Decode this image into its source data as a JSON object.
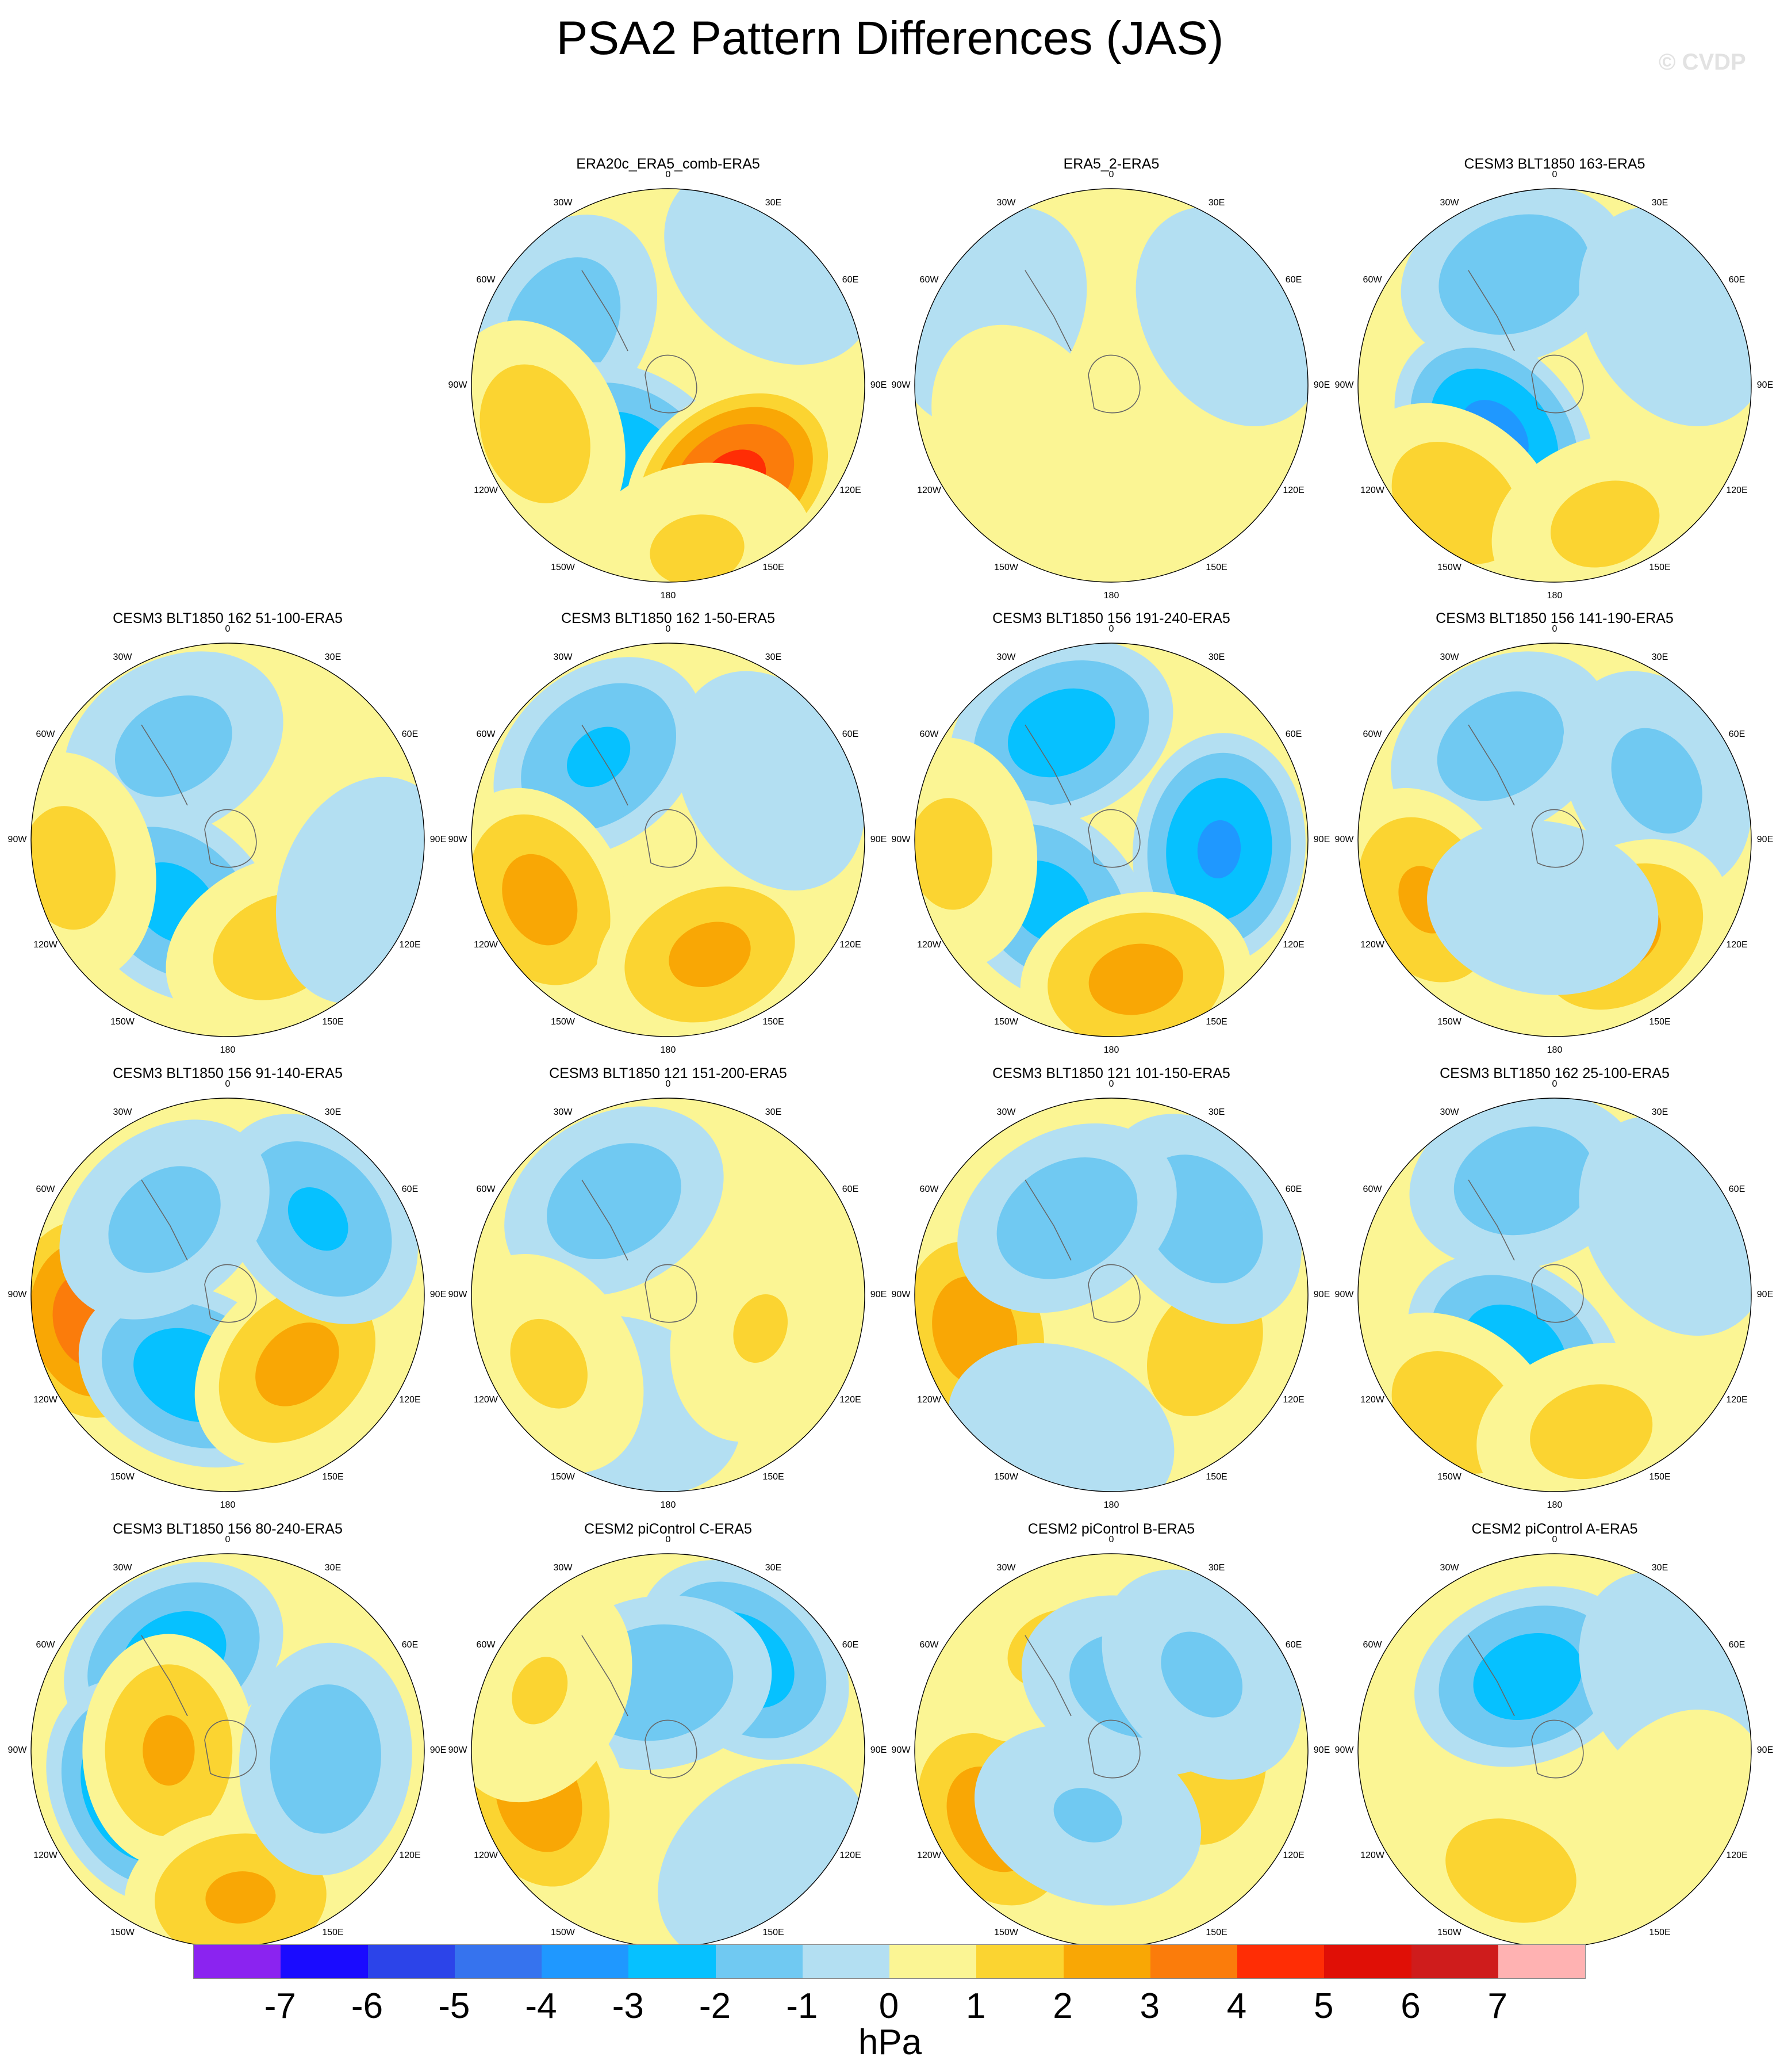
{
  "title": "PSA2 Pattern Differences (JAS)",
  "watermark": "© CVDP",
  "colorbar": {
    "unit": "hPa",
    "ticks": [
      "-7",
      "-6",
      "-5",
      "-4",
      "-3",
      "-2",
      "-1",
      "0",
      "1",
      "2",
      "3",
      "4",
      "5",
      "6",
      "7"
    ],
    "colors": [
      "#8b23f0",
      "#1a0bff",
      "#2c44e9",
      "#3673ee",
      "#1f98ff",
      "#06c1ff",
      "#70c9f2",
      "#b3dff2",
      "#fbf594",
      "#fbd431",
      "#f9a705",
      "#fb7c0b",
      "#ff2d05",
      "#e00f06",
      "#cf1c1c",
      "#ffb2b2"
    ]
  },
  "longitude_labels": [
    "0",
    "30E",
    "60E",
    "90E",
    "120E",
    "150E",
    "180",
    "150W",
    "120W",
    "90W",
    "60W",
    "30W"
  ],
  "chart_data": [
    {
      "type": "heatmap",
      "title": "ERA20c_ERA5_comb-ERA5",
      "features": [
        {
          "lon": 300,
          "r": 0.62,
          "v": -1.6
        },
        {
          "lon": 210,
          "r": 0.42,
          "v": -2.6
        },
        {
          "lon": 250,
          "r": 0.72,
          "v": 1.6
        },
        {
          "lon": 145,
          "r": 0.58,
          "v": 4.4
        },
        {
          "lon": 170,
          "r": 0.85,
          "v": 1.2
        },
        {
          "lon": 40,
          "r": 0.8,
          "v": -0.6
        }
      ]
    },
    {
      "type": "heatmap",
      "title": "ERA5_2-ERA5",
      "features": [
        {
          "lon": 300,
          "r": 0.7,
          "v": -0.7
        },
        {
          "lon": 60,
          "r": 0.7,
          "v": -0.7
        },
        {
          "lon": 180,
          "r": 0.6,
          "v": 0.6
        },
        {
          "lon": 240,
          "r": 0.5,
          "v": 0.5
        }
      ]
    },
    {
      "type": "heatmap",
      "title": "CESM3 BLT1850 163-ERA5",
      "features": [
        {
          "lon": 340,
          "r": 0.6,
          "v": -1.8
        },
        {
          "lon": 230,
          "r": 0.4,
          "v": -3.4
        },
        {
          "lon": 220,
          "r": 0.78,
          "v": 1.6
        },
        {
          "lon": 160,
          "r": 0.75,
          "v": 1.3
        },
        {
          "lon": 60,
          "r": 0.7,
          "v": -0.8
        }
      ]
    },
    {
      "type": "heatmap",
      "title": "CESM3 BLT1850 162 51-100-ERA5",
      "features": [
        {
          "lon": 330,
          "r": 0.55,
          "v": -1.4
        },
        {
          "lon": 220,
          "r": 0.42,
          "v": -2.4
        },
        {
          "lon": 260,
          "r": 0.82,
          "v": 1.4
        },
        {
          "lon": 155,
          "r": 0.6,
          "v": 1.5
        },
        {
          "lon": 110,
          "r": 0.75,
          "v": -0.7
        }
      ]
    },
    {
      "type": "heatmap",
      "title": "CESM3 BLT1850 162 1-50-ERA5",
      "features": [
        {
          "lon": 320,
          "r": 0.55,
          "v": -2.2
        },
        {
          "lon": 245,
          "r": 0.72,
          "v": 2.4
        },
        {
          "lon": 160,
          "r": 0.62,
          "v": 2.3
        },
        {
          "lon": 60,
          "r": 0.6,
          "v": -0.8
        }
      ]
    },
    {
      "type": "heatmap",
      "title": "CESM3 BLT1850 156 191-240-ERA5",
      "features": [
        {
          "lon": 335,
          "r": 0.6,
          "v": -2.6
        },
        {
          "lon": 95,
          "r": 0.55,
          "v": -3.2
        },
        {
          "lon": 225,
          "r": 0.45,
          "v": -2.4
        },
        {
          "lon": 170,
          "r": 0.72,
          "v": 2.4
        },
        {
          "lon": 265,
          "r": 0.82,
          "v": 1.3
        }
      ]
    },
    {
      "type": "heatmap",
      "title": "CESM3 BLT1850 156 141-190-ERA5",
      "features": [
        {
          "lon": 330,
          "r": 0.55,
          "v": -1.5
        },
        {
          "lon": 60,
          "r": 0.6,
          "v": -1.3
        },
        {
          "lon": 245,
          "r": 0.72,
          "v": 2.2
        },
        {
          "lon": 145,
          "r": 0.6,
          "v": 2.3
        },
        {
          "lon": 190,
          "r": 0.35,
          "v": -0.8
        }
      ]
    },
    {
      "type": "heatmap",
      "title": "CESM3 BLT1850 156 91-140-ERA5",
      "features": [
        {
          "lon": 260,
          "r": 0.72,
          "v": 3.6
        },
        {
          "lon": 205,
          "r": 0.45,
          "v": -2.7
        },
        {
          "lon": 135,
          "r": 0.5,
          "v": 2.4
        },
        {
          "lon": 50,
          "r": 0.6,
          "v": -2.2
        },
        {
          "lon": 320,
          "r": 0.5,
          "v": -1.4
        }
      ]
    },
    {
      "type": "heatmap",
      "title": "CESM3 BLT1850 121 151-200-ERA5",
      "features": [
        {
          "lon": 330,
          "r": 0.55,
          "v": -1.6
        },
        {
          "lon": 200,
          "r": 0.6,
          "v": -0.8
        },
        {
          "lon": 240,
          "r": 0.7,
          "v": 1.2
        },
        {
          "lon": 110,
          "r": 0.5,
          "v": 1.1
        }
      ]
    },
    {
      "type": "heatmap",
      "title": "CESM3 BLT1850 121 101-150-ERA5",
      "features": [
        {
          "lon": 255,
          "r": 0.72,
          "v": 2.6
        },
        {
          "lon": 120,
          "r": 0.55,
          "v": 1.6
        },
        {
          "lon": 50,
          "r": 0.6,
          "v": -1.6
        },
        {
          "lon": 330,
          "r": 0.45,
          "v": -1.7
        },
        {
          "lon": 200,
          "r": 0.75,
          "v": -0.8
        }
      ]
    },
    {
      "type": "heatmap",
      "title": "CESM3 BLT1850 162 25-100-ERA5",
      "features": [
        {
          "lon": 345,
          "r": 0.6,
          "v": -1.6
        },
        {
          "lon": 215,
          "r": 0.35,
          "v": -2.6
        },
        {
          "lon": 220,
          "r": 0.78,
          "v": 1.6
        },
        {
          "lon": 165,
          "r": 0.72,
          "v": 1.4
        },
        {
          "lon": 60,
          "r": 0.7,
          "v": -0.8
        }
      ]
    },
    {
      "type": "heatmap",
      "title": "CESM3 BLT1850 156 80-240-ERA5",
      "features": [
        {
          "lon": 330,
          "r": 0.55,
          "v": -2.6
        },
        {
          "lon": 245,
          "r": 0.5,
          "v": -3.3
        },
        {
          "lon": 270,
          "r": 0.3,
          "v": 2.2
        },
        {
          "lon": 175,
          "r": 0.75,
          "v": 2.2
        },
        {
          "lon": 95,
          "r": 0.5,
          "v": -1.7
        }
      ]
    },
    {
      "type": "heatmap",
      "title": "CESM2 piControl C-ERA5",
      "features": [
        {
          "lon": 40,
          "r": 0.6,
          "v": -2.6
        },
        {
          "lon": 350,
          "r": 0.35,
          "v": -1.8
        },
        {
          "lon": 250,
          "r": 0.7,
          "v": 2.6
        },
        {
          "lon": 295,
          "r": 0.72,
          "v": 1.1
        },
        {
          "lon": 140,
          "r": 0.75,
          "v": -0.8
        }
      ]
    },
    {
      "type": "heatmap",
      "title": "CESM2 piControl B-ERA5",
      "features": [
        {
          "lon": 240,
          "r": 0.7,
          "v": 2.6
        },
        {
          "lon": 100,
          "r": 0.5,
          "v": 1.8
        },
        {
          "lon": 330,
          "r": 0.6,
          "v": 1.2
        },
        {
          "lon": 20,
          "r": 0.35,
          "v": -1.5
        },
        {
          "lon": 50,
          "r": 0.6,
          "v": -1.2
        },
        {
          "lon": 200,
          "r": 0.35,
          "v": -1.1
        }
      ]
    },
    {
      "type": "heatmap",
      "title": "CESM2 piControl A-ERA5",
      "features": [
        {
          "lon": 340,
          "r": 0.4,
          "v": -2.6
        },
        {
          "lon": 200,
          "r": 0.65,
          "v": 1.5
        },
        {
          "lon": 60,
          "r": 0.7,
          "v": -0.8
        },
        {
          "lon": 120,
          "r": 0.7,
          "v": 0.6
        }
      ]
    }
  ]
}
